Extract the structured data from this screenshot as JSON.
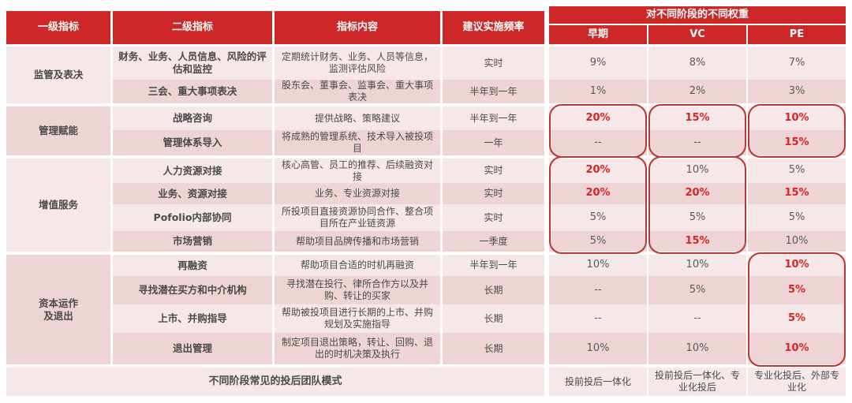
{
  "colors": {
    "header_red": "#ce2727",
    "row_light": "#f6e8e8",
    "row_dark": "#eed4d4",
    "highlight_text": "#dd2222",
    "highlight_box_border": "#b23a34",
    "body_text": "#4a4a4a"
  },
  "header": {
    "level1": "一级指标",
    "level2": "二级指标",
    "content": "指标内容",
    "frequency": "建议实施频率",
    "weights_group": "对不同阶段的不同权重",
    "stages": [
      "早期",
      "VC",
      "PE"
    ]
  },
  "groups": [
    {
      "name": "监管及表决"
    },
    {
      "name": "管理赋能"
    },
    {
      "name": "增值服务"
    },
    {
      "name": "资本运作\n及退出"
    }
  ],
  "rows": [
    {
      "level2": "财务、业务、人员信息、风险的评估和监控",
      "content": "定期统计财务、业务、人员等信息，监测评估风险",
      "frequency": "实时",
      "early": "9%",
      "vc": "8%",
      "pe": "7%"
    },
    {
      "level2": "三会、重大事项表决",
      "content": "股东会、董事会、监事会、重大事项表决",
      "frequency": "半年到一年",
      "early": "1%",
      "vc": "2%",
      "pe": "3%"
    },
    {
      "level2": "战略咨询",
      "content": "提供战略、策略建议",
      "frequency": "半年到一年",
      "early": "20%",
      "vc": "15%",
      "pe": "10%"
    },
    {
      "level2": "管理体系导入",
      "content": "将成熟的管理系统、技术导入被投项目",
      "frequency": "一年",
      "early": "--",
      "vc": "--",
      "pe": "15%"
    },
    {
      "level2": "人力资源对接",
      "content": "核心高管、员工的推荐、后续融资对接",
      "frequency": "实时",
      "early": "20%",
      "vc": "10%",
      "pe": "5%"
    },
    {
      "level2": "业务、资源对接",
      "content": "业务、专业资源对接",
      "frequency": "实时",
      "early": "20%",
      "vc": "20%",
      "pe": "15%"
    },
    {
      "level2": "Pofolio内部协同",
      "content": "所投项目直接资源协同合作、整合项目所在产业链资源",
      "frequency": "实时",
      "early": "5%",
      "vc": "5%",
      "pe": "5%"
    },
    {
      "level2": "市场营销",
      "content": "帮助项目品牌传播和市场营销",
      "frequency": "一季度",
      "early": "5%",
      "vc": "15%",
      "pe": "10%"
    },
    {
      "level2": "再融资",
      "content": "帮助项目合适的时机再融资",
      "frequency": "半年到一年",
      "early": "10%",
      "vc": "10%",
      "pe": "10%"
    },
    {
      "level2": "寻找潜在买方和中介机构",
      "content": "寻找潜在投行、律所合作方以及并购、转让的买家",
      "frequency": "长期",
      "early": "--",
      "vc": "5%",
      "pe": "5%"
    },
    {
      "level2": "上市、并购指导",
      "content": "帮助被投项目进行长期的上市、并购规划及实施指导",
      "frequency": "长期",
      "early": "--",
      "vc": "--",
      "pe": "5%"
    },
    {
      "level2": "退出管理",
      "content": "制定项目退出策略，转让、回购、退出的时机决策及执行",
      "frequency": "长期",
      "early": "10%",
      "vc": "10%",
      "pe": "10%"
    }
  ],
  "footer": {
    "label": "不同阶段常见的投后团队模式",
    "modes": [
      "投前投后一体化",
      "投前投后一体化、专业化投后",
      "专业化投后、外部专业化"
    ]
  }
}
